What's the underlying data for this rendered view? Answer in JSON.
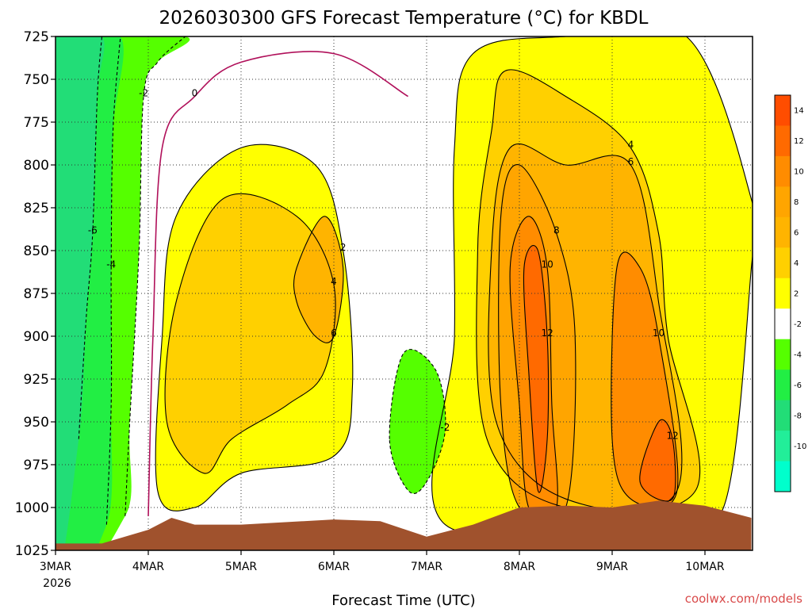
{
  "chart_data": {
    "type": "contour",
    "title": "2026030300 GFS Forecast Temperature (°C) for KBDL",
    "xlabel": "Forecast Time (UTC)",
    "ylabel": "",
    "credit": "coolwx.com/models",
    "x_ticks": [
      "3MAR",
      "4MAR",
      "5MAR",
      "6MAR",
      "7MAR",
      "8MAR",
      "9MAR",
      "10MAR"
    ],
    "x_tick_sub": "2026",
    "x_range_days": [
      0,
      7.5
    ],
    "y_ticks": [
      725,
      750,
      775,
      800,
      825,
      850,
      875,
      900,
      925,
      950,
      975,
      1000,
      1025
    ],
    "y_range_hpa": [
      725,
      1025
    ],
    "colorbar_labels": [
      "14",
      "12",
      "10",
      "8",
      "6",
      "4",
      "2",
      "-2",
      "-4",
      "-6",
      "-8",
      "-10"
    ],
    "colorbar_bands": [
      {
        "lo": 14,
        "hi": 16,
        "color": "#ff4d00"
      },
      {
        "lo": 12,
        "hi": 14,
        "color": "#ff6a00"
      },
      {
        "lo": 10,
        "hi": 12,
        "color": "#ff8c00"
      },
      {
        "lo": 8,
        "hi": 10,
        "color": "#ffa500"
      },
      {
        "lo": 6,
        "hi": 8,
        "color": "#ffb400"
      },
      {
        "lo": 4,
        "hi": 6,
        "color": "#ffd000"
      },
      {
        "lo": 2,
        "hi": 4,
        "color": "#ffff00"
      },
      {
        "lo": -2,
        "hi": 2,
        "color": "#ffffff"
      },
      {
        "lo": -4,
        "hi": -2,
        "color": "#55ff00"
      },
      {
        "lo": -6,
        "hi": -4,
        "color": "#22ee44"
      },
      {
        "lo": -8,
        "hi": -6,
        "color": "#22dd77"
      },
      {
        "lo": -10,
        "hi": -8,
        "color": "#22ee99"
      },
      {
        "lo": -12,
        "hi": -10,
        "color": "#00ffcc"
      }
    ],
    "zero_contour_color": "#b0105a",
    "terrain_color": "#a0522d",
    "grid": true,
    "surface_pressure_hpa": [
      [
        0,
        1021
      ],
      [
        0.5,
        1021
      ],
      [
        1.0,
        1013
      ],
      [
        1.25,
        1006
      ],
      [
        1.5,
        1010
      ],
      [
        2.0,
        1010
      ],
      [
        3.0,
        1007
      ],
      [
        3.5,
        1008
      ],
      [
        4.0,
        1017
      ],
      [
        4.5,
        1010
      ],
      [
        5.0,
        1000
      ],
      [
        5.5,
        999
      ],
      [
        6.0,
        1000
      ],
      [
        6.5,
        996
      ],
      [
        7.0,
        999
      ],
      [
        7.5,
        1006
      ]
    ],
    "series": [
      {
        "label": "-6",
        "temp": -6,
        "points": [
          [
            0.25,
            960
          ],
          [
            0.33,
            890
          ],
          [
            0.4,
            840
          ],
          [
            0.45,
            760
          ],
          [
            0.5,
            725
          ]
        ]
      },
      {
        "label": "-4",
        "temp": -4,
        "points": [
          [
            0.55,
            1010
          ],
          [
            0.6,
            940
          ],
          [
            0.6,
            860
          ],
          [
            0.62,
            780
          ],
          [
            0.7,
            725
          ]
        ]
      },
      {
        "label": "-2",
        "temp": -2,
        "points": [
          [
            0.75,
            1005
          ],
          [
            0.8,
            950
          ],
          [
            0.9,
            850
          ],
          [
            0.95,
            760
          ],
          [
            1.1,
            740
          ],
          [
            1.4,
            725
          ]
        ]
      },
      {
        "label": "0",
        "temp": 0,
        "points": [
          [
            1.0,
            1005
          ],
          [
            1.05,
            900
          ],
          [
            1.15,
            790
          ],
          [
            1.5,
            760
          ],
          [
            2.0,
            740
          ],
          [
            3.0,
            735
          ],
          [
            3.8,
            760
          ]
        ]
      },
      {
        "label": "2",
        "temp": 2,
        "points": [
          [
            1.1,
            990
          ],
          [
            1.15,
            900
          ],
          [
            1.3,
            830
          ],
          [
            2.0,
            790
          ],
          [
            2.8,
            800
          ],
          [
            3.1,
            850
          ],
          [
            3.2,
            930
          ],
          [
            3.0,
            970
          ],
          [
            2.0,
            980
          ],
          [
            1.5,
            1000
          ]
        ]
      },
      {
        "label": "4",
        "temp": 4,
        "points": [
          [
            1.2,
            950
          ],
          [
            1.3,
            880
          ],
          [
            1.8,
            820
          ],
          [
            2.6,
            830
          ],
          [
            3.0,
            870
          ],
          [
            2.9,
            920
          ],
          [
            2.5,
            940
          ],
          [
            1.9,
            960
          ],
          [
            1.6,
            980
          ]
        ]
      },
      {
        "label": "6",
        "temp": 6,
        "points": [
          [
            2.6,
            860
          ],
          [
            2.9,
            830
          ],
          [
            3.1,
            860
          ],
          [
            3.0,
            900
          ],
          [
            2.8,
            900
          ],
          [
            2.6,
            880
          ]
        ]
      },
      {
        "label": "-2",
        "temp": -2,
        "points": [
          [
            3.6,
            960
          ],
          [
            3.75,
            910
          ],
          [
            4.1,
            920
          ],
          [
            4.2,
            955
          ],
          [
            4.0,
            985
          ],
          [
            3.8,
            990
          ]
        ]
      },
      {
        "label": "2",
        "temp": 2,
        "points": [
          [
            4.2,
            1010
          ],
          [
            4.3,
            900
          ],
          [
            4.3,
            790
          ],
          [
            4.5,
            735
          ],
          [
            5.5,
            725
          ],
          [
            6.8,
            725
          ],
          [
            7.5,
            820
          ],
          [
            7.5,
            860
          ],
          [
            7.2,
            1000
          ],
          [
            6.5,
            1000
          ]
        ]
      },
      {
        "label": "4",
        "temp": 4,
        "points": [
          [
            4.65,
            960
          ],
          [
            4.55,
            850
          ],
          [
            4.7,
            780
          ],
          [
            4.85,
            745
          ],
          [
            5.5,
            760
          ],
          [
            6.2,
            790
          ],
          [
            6.5,
            840
          ],
          [
            6.6,
            900
          ],
          [
            6.9,
            990
          ],
          [
            5.5,
            1000
          ]
        ]
      },
      {
        "label": "6",
        "temp": 6,
        "points": [
          [
            4.75,
            950
          ],
          [
            4.7,
            850
          ],
          [
            4.9,
            790
          ],
          [
            5.5,
            800
          ],
          [
            6.2,
            800
          ],
          [
            6.5,
            880
          ],
          [
            6.7,
            990
          ],
          [
            5.5,
            995
          ]
        ]
      },
      {
        "label": "8",
        "temp": 8,
        "points": [
          [
            4.8,
            940
          ],
          [
            4.8,
            830
          ],
          [
            5.0,
            800
          ],
          [
            5.4,
            840
          ],
          [
            5.6,
            900
          ],
          [
            5.5,
            1000
          ],
          [
            5.0,
            1000
          ]
        ]
      },
      {
        "label": "10",
        "temp": 10,
        "points": [
          [
            5.0,
            940
          ],
          [
            4.9,
            860
          ],
          [
            5.1,
            830
          ],
          [
            5.3,
            860
          ],
          [
            5.35,
            940
          ],
          [
            5.4,
            1000
          ],
          [
            5.1,
            1000
          ]
        ]
      },
      {
        "label": "12",
        "temp": 12,
        "points": [
          [
            5.1,
            920
          ],
          [
            5.05,
            860
          ],
          [
            5.2,
            850
          ],
          [
            5.3,
            900
          ],
          [
            5.3,
            960
          ],
          [
            5.2,
            990
          ]
        ]
      },
      {
        "label": "10",
        "temp": 10,
        "points": [
          [
            6.0,
            960
          ],
          [
            6.05,
            860
          ],
          [
            6.3,
            860
          ],
          [
            6.5,
            900
          ],
          [
            6.7,
            990
          ],
          [
            6.2,
            995
          ]
        ]
      },
      {
        "label": "12",
        "temp": 12,
        "points": [
          [
            6.3,
            985
          ],
          [
            6.5,
            950
          ],
          [
            6.65,
            960
          ],
          [
            6.65,
            995
          ]
        ]
      }
    ]
  }
}
